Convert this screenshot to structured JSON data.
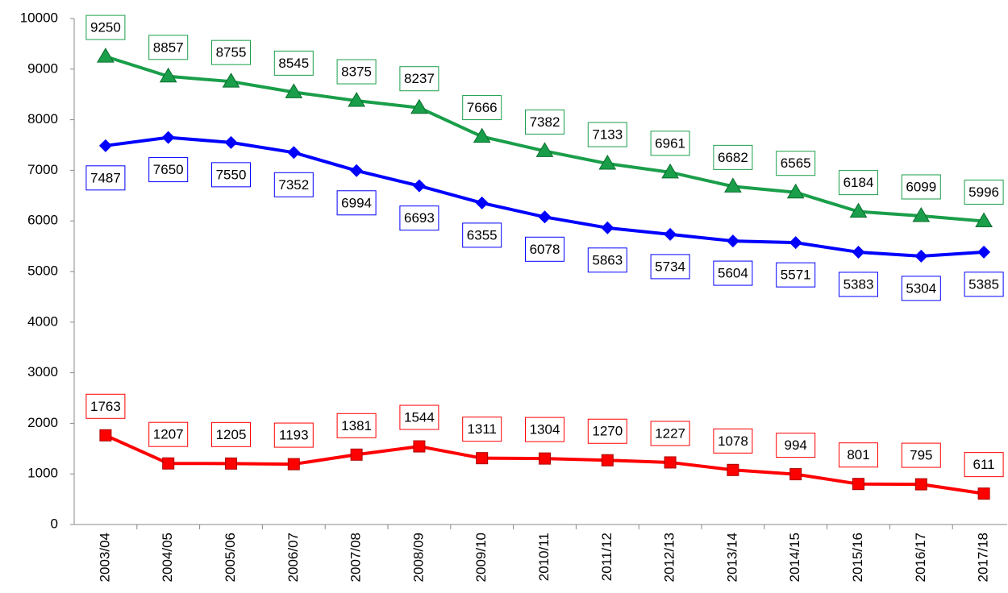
{
  "chart_data": {
    "type": "line",
    "categories": [
      "2003/04",
      "2004/05",
      "2005/06",
      "2006/07",
      "2007/08",
      "2008/09",
      "2009/10",
      "2010/11",
      "2011/12",
      "2012/13",
      "2013/14",
      "2014/15",
      "2015/16",
      "2016/17",
      "2017/18"
    ],
    "series": [
      {
        "color": "#1a9e4a",
        "marker": "triangle",
        "label_position": "above",
        "values": [
          9250,
          8857,
          8755,
          8545,
          8375,
          8237,
          7666,
          7382,
          7133,
          6961,
          6682,
          6565,
          6184,
          6099,
          5996
        ]
      },
      {
        "color": "#0000ff",
        "marker": "diamond",
        "label_position": "below",
        "values": [
          7487,
          7650,
          7550,
          7352,
          6994,
          6693,
          6355,
          6078,
          5863,
          5734,
          5604,
          5571,
          5383,
          5304,
          5385
        ]
      },
      {
        "color": "#ff0000",
        "marker": "square",
        "label_position": "above",
        "values": [
          1763,
          1207,
          1205,
          1193,
          1381,
          1544,
          1311,
          1304,
          1270,
          1227,
          1078,
          994,
          801,
          795,
          611
        ]
      }
    ],
    "ylim": [
      0,
      10000
    ],
    "yticks": [
      0,
      1000,
      2000,
      3000,
      4000,
      5000,
      6000,
      7000,
      8000,
      9000,
      10000
    ],
    "grid": false
  }
}
